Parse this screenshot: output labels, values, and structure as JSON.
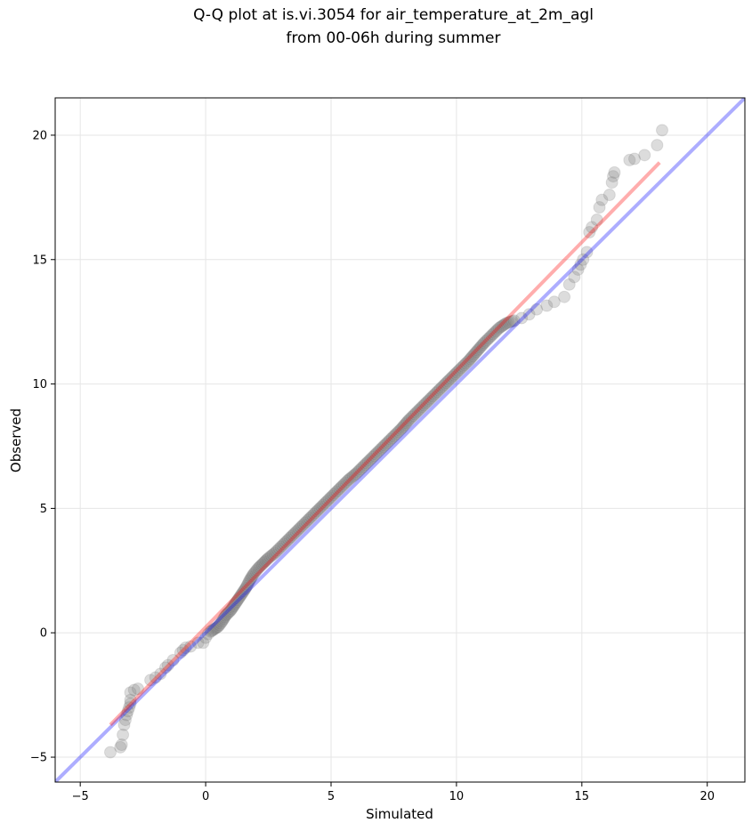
{
  "chart_data": {
    "type": "scatter",
    "title_lines": [
      "Q-Q plot at is.vi.3054 for air_temperature_at_2m_agl",
      "from 00-06h during summer"
    ],
    "xlabel": "Simulated",
    "ylabel": "Observed",
    "xlim": [
      -6,
      21.5
    ],
    "ylim": [
      -6,
      21.5
    ],
    "x_ticks": [
      -5,
      0,
      5,
      10,
      15,
      20
    ],
    "y_ticks": [
      -5,
      0,
      5,
      10,
      15,
      20
    ],
    "grid": true,
    "reference_line": {
      "slope": 1,
      "intercept": 0,
      "color": "#0000ff"
    },
    "fit_line": {
      "x": [
        -3.8,
        18.1
      ],
      "y": [
        -3.7,
        18.9
      ],
      "color": "#ff0000"
    },
    "point_color": "#808080",
    "points": [
      [
        -3.8,
        -4.8
      ],
      [
        -3.4,
        -4.6
      ],
      [
        -3.35,
        -4.5
      ],
      [
        -3.3,
        -4.1
      ],
      [
        -3.25,
        -3.7
      ],
      [
        -3.2,
        -3.5
      ],
      [
        -3.15,
        -3.3
      ],
      [
        -3.1,
        -3.15
      ],
      [
        -3.05,
        -3.0
      ],
      [
        -3.0,
        -2.85
      ],
      [
        -3.0,
        -2.7
      ],
      [
        -3.0,
        -2.4
      ],
      [
        -2.85,
        -2.3
      ],
      [
        -2.7,
        -2.25
      ],
      [
        -2.2,
        -1.9
      ],
      [
        -2.0,
        -1.8
      ],
      [
        -1.8,
        -1.65
      ],
      [
        -1.6,
        -1.4
      ],
      [
        -1.5,
        -1.3
      ],
      [
        -1.3,
        -1.1
      ],
      [
        -1.0,
        -0.8
      ],
      [
        -0.9,
        -0.7
      ],
      [
        -0.8,
        -0.6
      ],
      [
        -0.6,
        -0.55
      ],
      [
        -0.3,
        -0.4
      ],
      [
        -0.1,
        -0.4
      ],
      [
        0.0,
        -0.2
      ],
      [
        0.1,
        -0.05
      ],
      [
        0.2,
        0.05
      ],
      [
        0.35,
        0.15
      ],
      [
        0.5,
        0.25
      ],
      [
        0.65,
        0.45
      ],
      [
        0.8,
        0.7
      ],
      [
        1.0,
        0.9
      ],
      [
        1.2,
        1.2
      ],
      [
        1.4,
        1.5
      ],
      [
        1.6,
        1.8
      ],
      [
        1.75,
        2.1
      ],
      [
        1.9,
        2.35
      ],
      [
        2.1,
        2.6
      ],
      [
        2.3,
        2.8
      ],
      [
        2.5,
        3.0
      ],
      [
        2.75,
        3.2
      ],
      [
        3.0,
        3.45
      ],
      [
        3.3,
        3.75
      ],
      [
        3.6,
        4.05
      ],
      [
        3.9,
        4.35
      ],
      [
        4.2,
        4.65
      ],
      [
        4.5,
        4.95
      ],
      [
        4.8,
        5.25
      ],
      [
        5.1,
        5.55
      ],
      [
        5.4,
        5.85
      ],
      [
        5.7,
        6.15
      ],
      [
        6.0,
        6.4
      ],
      [
        6.3,
        6.7
      ],
      [
        6.6,
        7.0
      ],
      [
        6.9,
        7.3
      ],
      [
        7.2,
        7.6
      ],
      [
        7.5,
        7.9
      ],
      [
        7.8,
        8.2
      ],
      [
        8.1,
        8.55
      ],
      [
        8.4,
        8.85
      ],
      [
        8.7,
        9.15
      ],
      [
        9.0,
        9.45
      ],
      [
        9.3,
        9.75
      ],
      [
        9.6,
        10.05
      ],
      [
        9.9,
        10.35
      ],
      [
        10.2,
        10.65
      ],
      [
        10.5,
        10.95
      ],
      [
        10.8,
        11.3
      ],
      [
        11.1,
        11.65
      ],
      [
        11.4,
        11.95
      ],
      [
        11.7,
        12.25
      ],
      [
        12.0,
        12.45
      ],
      [
        12.3,
        12.55
      ],
      [
        12.6,
        12.65
      ],
      [
        12.9,
        12.8
      ],
      [
        13.2,
        13.0
      ],
      [
        13.6,
        13.15
      ],
      [
        13.9,
        13.3
      ],
      [
        14.3,
        13.5
      ],
      [
        14.5,
        14.0
      ],
      [
        14.7,
        14.3
      ],
      [
        14.85,
        14.6
      ],
      [
        14.95,
        14.8
      ],
      [
        15.05,
        15.0
      ],
      [
        15.2,
        15.3
      ],
      [
        15.3,
        16.1
      ],
      [
        15.4,
        16.3
      ],
      [
        15.6,
        16.6
      ],
      [
        15.7,
        17.1
      ],
      [
        15.8,
        17.4
      ],
      [
        16.1,
        17.6
      ],
      [
        16.2,
        18.1
      ],
      [
        16.25,
        18.35
      ],
      [
        16.3,
        18.5
      ],
      [
        16.9,
        19.0
      ],
      [
        17.1,
        19.05
      ],
      [
        17.5,
        19.2
      ],
      [
        18.0,
        19.6
      ],
      [
        18.2,
        20.2
      ]
    ]
  }
}
